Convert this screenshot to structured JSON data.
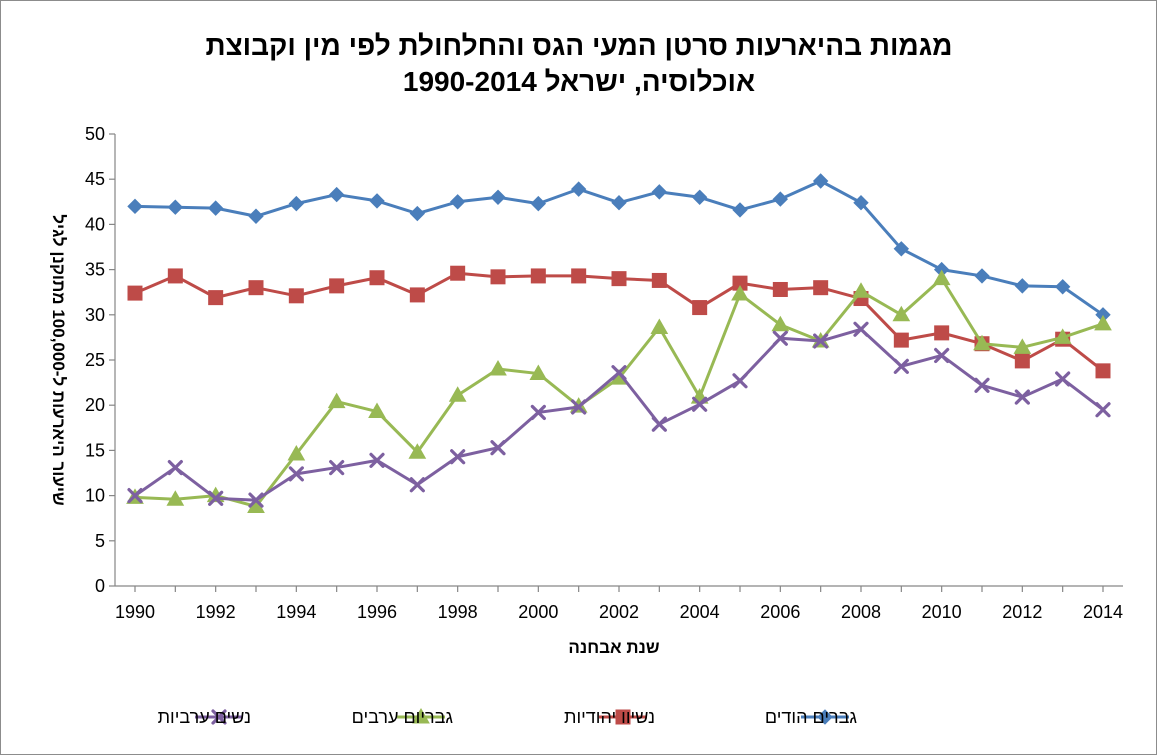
{
  "chart_data": {
    "type": "line",
    "title": [
      "מגמות בהיארעות סרטן המעי הגס והחלחולת לפי מין וקבוצת",
      "אוכלוסיה, ישראל 1990-2014"
    ],
    "xlabel": "שנת אבחנה",
    "ylabel": "שיעור היארעות ל-100,000 מתוקנן לגיל",
    "ylim": [
      0,
      50
    ],
    "yticks": [
      0,
      5,
      10,
      15,
      20,
      25,
      30,
      35,
      40,
      45,
      50
    ],
    "xticks": [
      1990,
      1992,
      1994,
      1996,
      1998,
      2000,
      2002,
      2004,
      2006,
      2008,
      2010,
      2012,
      2014
    ],
    "x": [
      1990,
      1991,
      1992,
      1993,
      1994,
      1995,
      1996,
      1997,
      1998,
      1999,
      2000,
      2001,
      2002,
      2003,
      2004,
      2005,
      2006,
      2007,
      2008,
      2009,
      2010,
      2011,
      2012,
      2013,
      2014
    ],
    "legend_position": "bottom",
    "grid": false,
    "series": [
      {
        "name": "גברים הודים",
        "color": "#4a7ebb",
        "marker": "diamond",
        "values": [
          42.0,
          41.9,
          41.8,
          40.9,
          42.3,
          43.3,
          42.6,
          41.2,
          42.5,
          43.0,
          42.3,
          43.9,
          42.4,
          43.6,
          43.0,
          41.6,
          42.8,
          44.8,
          42.4,
          37.3,
          35.0,
          34.3,
          33.2,
          33.1,
          30.0
        ]
      },
      {
        "name": "נשיוו יהודיות",
        "color": "#be4b48",
        "marker": "square",
        "values": [
          32.4,
          34.3,
          31.9,
          33.0,
          32.1,
          33.2,
          34.1,
          32.2,
          34.6,
          34.2,
          34.3,
          34.3,
          34.0,
          33.8,
          30.8,
          33.5,
          32.8,
          33.0,
          31.8,
          27.2,
          28.0,
          26.8,
          24.9,
          27.3,
          23.8
        ]
      },
      {
        "name": "גבריום ערבים",
        "color": "#98b954",
        "marker": "triangle",
        "values": [
          9.8,
          9.6,
          10.0,
          8.8,
          14.6,
          20.4,
          19.3,
          14.8,
          21.1,
          24.0,
          23.5,
          19.9,
          23.0,
          28.6,
          20.9,
          32.3,
          28.9,
          27.1,
          32.6,
          30.0,
          34.0,
          26.8,
          26.4,
          27.5,
          29.0
        ]
      },
      {
        "name": "נשים ערביות",
        "color": "#7d60a0",
        "marker": "x",
        "values": [
          10.0,
          13.1,
          9.7,
          9.5,
          12.4,
          13.1,
          13.9,
          11.2,
          14.3,
          15.3,
          19.2,
          19.8,
          23.6,
          17.9,
          20.1,
          22.7,
          27.4,
          27.1,
          28.4,
          24.3,
          25.5,
          22.2,
          20.9,
          22.9,
          19.5
        ]
      }
    ]
  }
}
